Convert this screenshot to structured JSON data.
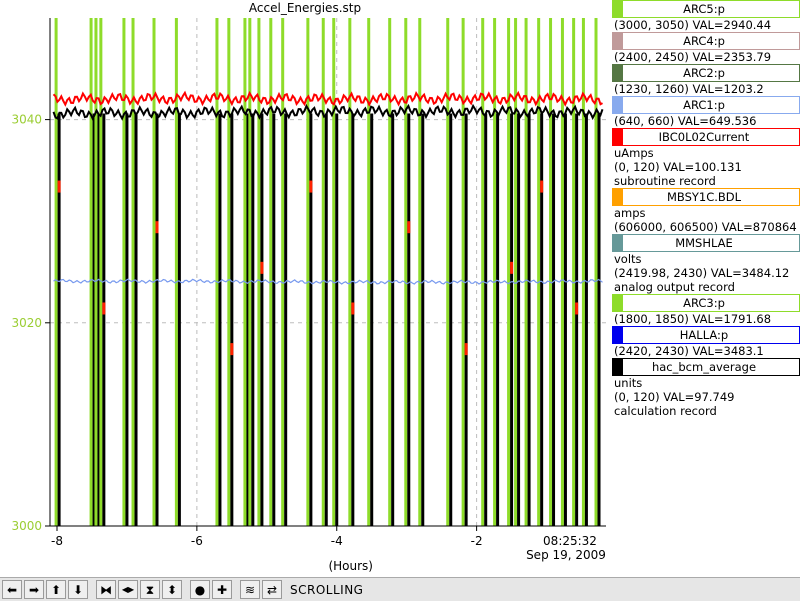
{
  "window_title": "Accel_Energies.stp",
  "chart_data": {
    "type": "line",
    "title": "Accel_Energies.stp",
    "xlabel": "(Hours)",
    "xlim": [
      -8.1,
      -0.15
    ],
    "ylim": [
      3000,
      3050
    ],
    "x_ticks": [
      -8,
      -6,
      -4,
      -2
    ],
    "x_tick_labels": [
      "-8",
      "-6",
      "-4",
      "-2"
    ],
    "y_ticks": [
      3000,
      3020,
      3040
    ],
    "y_tick_labels": [
      "3000",
      "3020",
      "3040"
    ],
    "y_tick_color": "#9acd32",
    "time_label": "08:25:32",
    "date_label": "Sep 19, 2009",
    "grid": true,
    "legend_position": "right",
    "series": [
      {
        "name": "ARC1:p",
        "color": "#7799ee",
        "points": [
          [
            -8.05,
            3024.1
          ],
          [
            -6.0,
            3024.1
          ],
          [
            -4.0,
            3024.0
          ],
          [
            -2.0,
            3024.0
          ],
          [
            -0.2,
            3024.1
          ]
        ]
      },
      {
        "name": "IBC0L02Current",
        "color": "#ff0000",
        "points": [
          [
            -8.05,
            3042.0
          ],
          [
            -6.0,
            3042.1
          ],
          [
            -4.0,
            3042.0
          ],
          [
            -2.0,
            3042.1
          ],
          [
            -0.2,
            3042.0
          ]
        ]
      },
      {
        "name": "hac_bcm_average",
        "color": "#000000",
        "points": [
          [
            -8.05,
            3040.6
          ],
          [
            -6.0,
            3040.7
          ],
          [
            -4.0,
            3040.8
          ],
          [
            -2.0,
            3040.8
          ],
          [
            -0.2,
            3040.7
          ]
        ]
      }
    ],
    "beam_trips_hours": [
      -8.02,
      -7.52,
      -7.45,
      -7.38,
      -7.05,
      -6.92,
      -6.62,
      -6.3,
      -5.72,
      -5.55,
      -5.32,
      -5.25,
      -5.12,
      -4.95,
      -4.78,
      -4.42,
      -4.2,
      -4.05,
      -3.82,
      -3.55,
      -3.25,
      -3.02,
      -2.82,
      -2.42,
      -2.2,
      -1.92,
      -1.75,
      -1.55,
      -1.45,
      -1.3,
      -1.12,
      -0.95,
      -0.78,
      -0.62,
      -0.48,
      -0.3
    ],
    "trip_colors": {
      "green": "#8edc2a",
      "black": "#000000",
      "red": "#ff2200"
    }
  },
  "legend": [
    {
      "name": "ARC5:p",
      "color": "#8edc2a",
      "lines": [
        "(3000, 3050) VAL=2940.44"
      ]
    },
    {
      "name": "ARC4:p",
      "color": "#c09a9a",
      "lines": [
        "(2400, 2450) VAL=2353.79"
      ]
    },
    {
      "name": "ARC2:p",
      "color": "#557744",
      "lines": [
        "(1230, 1260) VAL=1203.2"
      ]
    },
    {
      "name": "ARC1:p",
      "color": "#88aaee",
      "lines": [
        "(640, 660) VAL=649.536"
      ]
    },
    {
      "name": "IBC0L02Current",
      "color": "#ff0000",
      "lines": [
        "uAmps",
        "(0, 120) VAL=100.131",
        "subroutine record"
      ]
    },
    {
      "name": "MBSY1C.BDL",
      "color": "#ffa000",
      "lines": [
        "amps",
        "(606000, 606500) VAL=870864"
      ]
    },
    {
      "name": "MMSHLAE",
      "color": "#669999",
      "lines": [
        "volts",
        "(2419.98, 2430) VAL=3484.12",
        "analog output record"
      ]
    },
    {
      "name": "ARC3:p",
      "color": "#8edc2a",
      "lines": [
        "(1800, 1850) VAL=1791.68"
      ]
    },
    {
      "name": "HALLA:p",
      "color": "#0000ee",
      "lines": [
        "(2420, 2430) VAL=3483.1"
      ]
    },
    {
      "name": "hac_bcm_average",
      "color": "#000000",
      "lines": [
        "units",
        "(0, 120) VAL=97.749",
        "calculation record"
      ]
    }
  ],
  "toolbar": {
    "status": "SCROLLING",
    "buttons": [
      {
        "name": "scroll-left-button",
        "icon": "⬅"
      },
      {
        "name": "scroll-right-button",
        "icon": "➡"
      },
      {
        "name": "scroll-up-button",
        "icon": "⬆"
      },
      {
        "name": "scroll-down-button",
        "icon": "⬇"
      },
      {
        "name": "zoom-in-x-button",
        "icon": "⧓"
      },
      {
        "name": "zoom-out-x-button",
        "icon": "◀▶"
      },
      {
        "name": "zoom-in-y-button",
        "icon": "⧗"
      },
      {
        "name": "zoom-out-y-button",
        "icon": "⬍"
      },
      {
        "name": "record-button",
        "icon": "●"
      },
      {
        "name": "center-button",
        "icon": "✚"
      },
      {
        "name": "config-button",
        "icon": "≋"
      },
      {
        "name": "scroll-mode-button",
        "icon": "⇄"
      }
    ]
  }
}
